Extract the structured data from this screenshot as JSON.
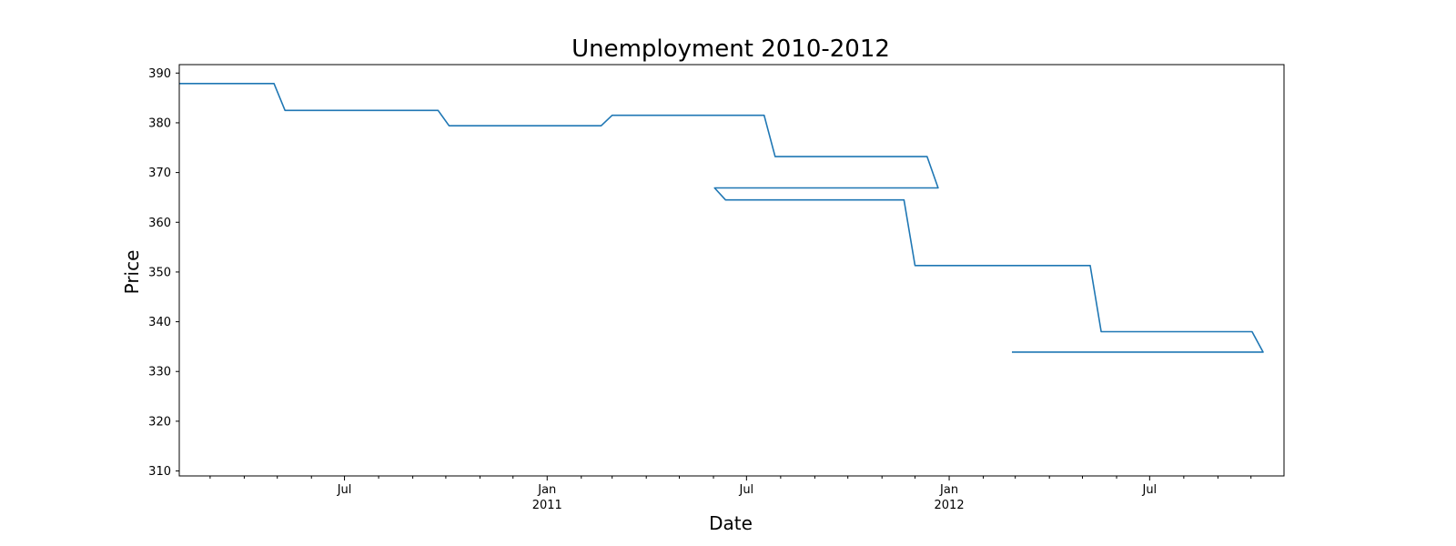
{
  "chart_data": {
    "type": "line",
    "title": "Unemployment 2010-2012",
    "xlabel": "Date",
    "ylabel": "Price",
    "ylim": [
      309,
      391.7
    ],
    "xlim": [
      "2010-02-01",
      "2012-10-31"
    ],
    "y_ticks": [
      310,
      320,
      330,
      340,
      350,
      360,
      370,
      380,
      390
    ],
    "x_major_ticks": [
      {
        "date": "2010-07-01",
        "label": "Jul",
        "sublabel": ""
      },
      {
        "date": "2011-01-01",
        "label": "Jan",
        "sublabel": "2011"
      },
      {
        "date": "2011-07-01",
        "label": "Jul",
        "sublabel": ""
      },
      {
        "date": "2012-01-01",
        "label": "Jan",
        "sublabel": "2012"
      },
      {
        "date": "2012-07-01",
        "label": "Jul",
        "sublabel": ""
      }
    ],
    "x_minor_ticks": [
      "2010-03-01",
      "2010-04-01",
      "2010-05-01",
      "2010-06-01",
      "2010-08-01",
      "2010-09-01",
      "2010-10-01",
      "2010-11-01",
      "2010-12-01",
      "2011-02-01",
      "2011-03-01",
      "2011-04-01",
      "2011-05-01",
      "2011-06-01",
      "2011-08-01",
      "2011-09-01",
      "2011-10-01",
      "2011-11-01",
      "2011-12-01",
      "2012-02-01",
      "2012-03-01",
      "2012-04-01",
      "2012-05-01",
      "2012-06-01",
      "2012-08-01",
      "2012-09-01",
      "2012-10-01"
    ],
    "grid": false,
    "legend": "none",
    "series": [
      {
        "color": "#1f77b4",
        "points": [
          [
            "2010-02-01",
            387.9
          ],
          [
            "2010-04-28",
            387.9
          ],
          [
            "2010-05-08",
            382.5
          ],
          [
            "2010-09-24",
            382.5
          ],
          [
            "2010-10-04",
            379.4
          ],
          [
            "2011-02-19",
            379.4
          ],
          [
            "2011-03-01",
            381.5
          ],
          [
            "2011-07-17",
            381.5
          ],
          [
            "2011-07-27",
            373.2
          ],
          [
            "2011-12-12",
            373.2
          ],
          [
            "2011-12-22",
            366.9
          ],
          [
            "2011-06-02",
            366.9
          ],
          [
            "2011-06-12",
            364.5
          ],
          [
            "2011-11-21",
            364.5
          ],
          [
            "2011-12-01",
            351.3
          ],
          [
            "2012-05-08",
            351.3
          ],
          [
            "2012-05-18",
            338.0
          ],
          [
            "2012-10-02",
            338.0
          ],
          [
            "2012-10-12",
            333.9
          ],
          [
            "2012-02-27",
            333.9
          ]
        ]
      }
    ]
  }
}
